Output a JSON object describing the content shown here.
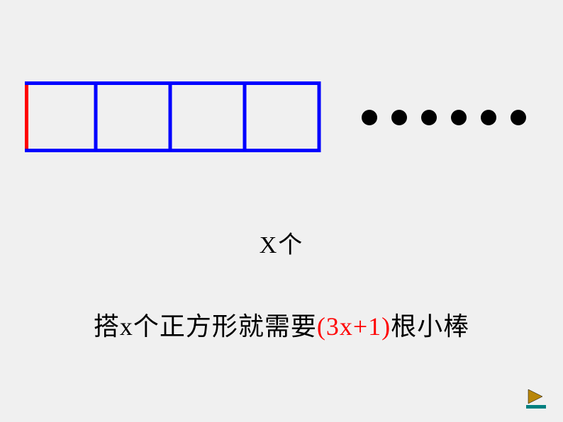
{
  "background_color": "#f0f0f0",
  "diagram": {
    "squares": {
      "count": 4,
      "size": 100,
      "stroke_width": 5,
      "first_line_color": "#ff0000",
      "line_color": "#0000ff",
      "start_x": 0,
      "start_y": 0
    },
    "dots": {
      "count": 6,
      "diameter": 22,
      "color": "#000000",
      "gap": 20
    }
  },
  "label_x": "X个",
  "statement": {
    "part1": "搭x个正方形就需要",
    "formula": "(3x+1)",
    "part2": "根小棒",
    "formula_color": "#ff0000",
    "text_color": "#000000",
    "fontsize": 36
  },
  "nav": {
    "icon_name": "next-slide",
    "arrow_color": "#b8860b",
    "underline_color": "#008080"
  }
}
